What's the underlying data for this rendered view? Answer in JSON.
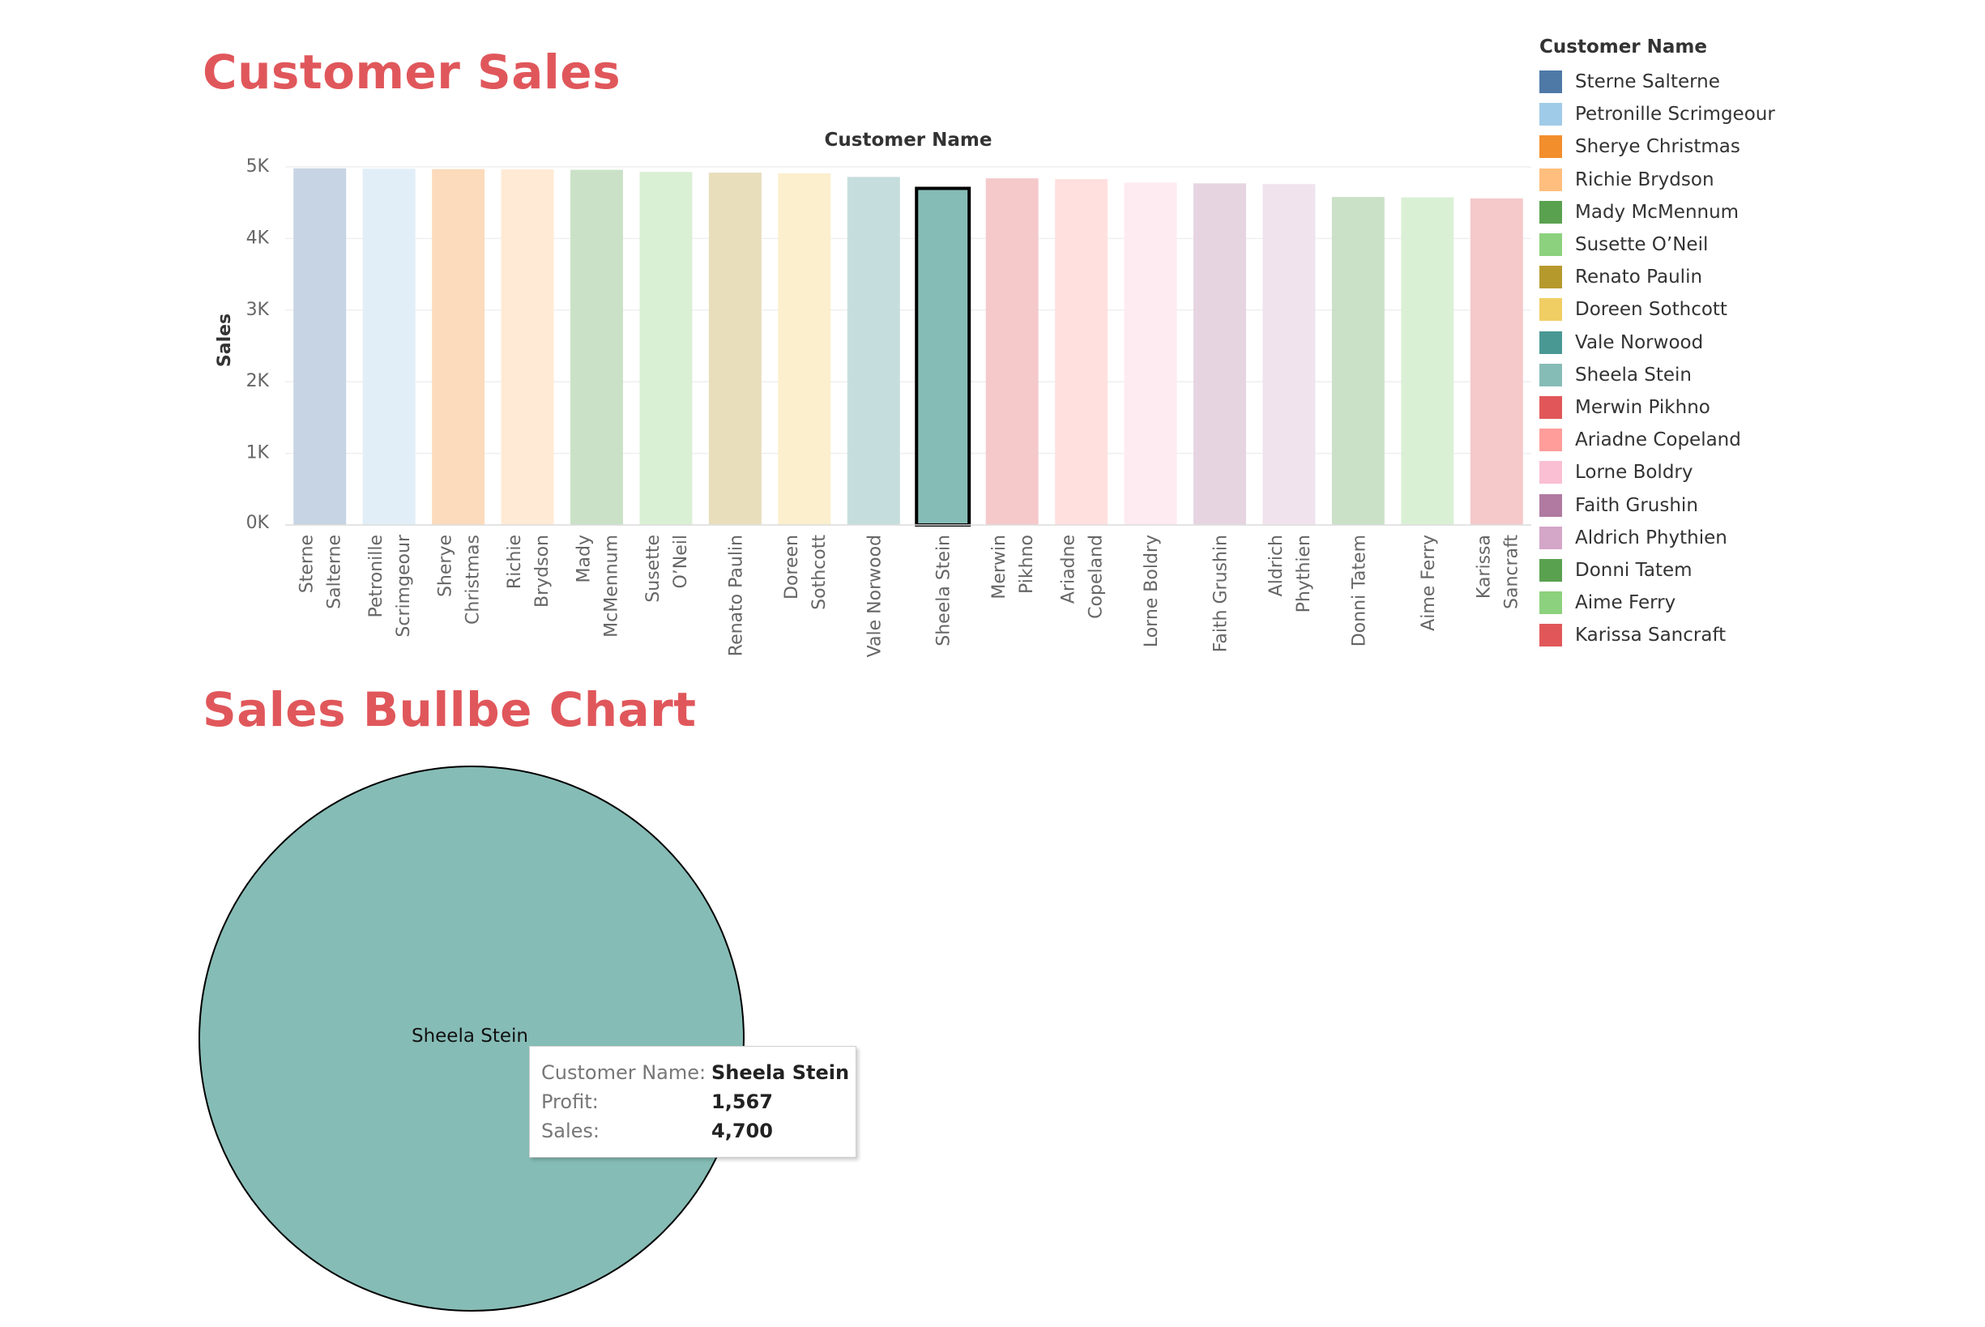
{
  "titles": {
    "customer_sales": "Customer Sales",
    "bulb_chart": "Sales Bullbe Chart"
  },
  "legend": {
    "title": "Customer Name",
    "items": [
      {
        "label": "Sterne Salterne",
        "color": "#4e79a7"
      },
      {
        "label": "Petronille Scrimgeour",
        "color": "#a0cbe8"
      },
      {
        "label": "Sherye Christmas",
        "color": "#f28e2b"
      },
      {
        "label": "Richie Brydson",
        "color": "#ffbe7d"
      },
      {
        "label": "Mady McMennum",
        "color": "#59a14f"
      },
      {
        "label": "Susette O’Neil",
        "color": "#8cd17d"
      },
      {
        "label": "Renato Paulin",
        "color": "#b6992d"
      },
      {
        "label": "Doreen Sothcott",
        "color": "#f1ce63"
      },
      {
        "label": "Vale Norwood",
        "color": "#499894"
      },
      {
        "label": "Sheela Stein",
        "color": "#86bcb6"
      },
      {
        "label": "Merwin Pikhno",
        "color": "#e15759"
      },
      {
        "label": "Ariadne Copeland",
        "color": "#ff9d9a"
      },
      {
        "label": "Lorne Boldry",
        "color": "#fabfd2"
      },
      {
        "label": "Faith Grushin",
        "color": "#b07aa1"
      },
      {
        "label": "Aldrich Phythien",
        "color": "#d4a6c8"
      },
      {
        "label": "Donni Tatem",
        "color": "#59a14f"
      },
      {
        "label": "Aime Ferry",
        "color": "#8cd17d"
      },
      {
        "label": "Karissa Sancraft",
        "color": "#e15759"
      }
    ]
  },
  "chart_data": [
    {
      "type": "bar",
      "title": "Customer Name",
      "xlabel": "Customer Name",
      "ylabel": "Sales",
      "yticks": [
        "0K",
        "1K",
        "2K",
        "3K",
        "4K",
        "5K"
      ],
      "ylim": [
        0,
        5000
      ],
      "grid": true,
      "highlighted": "Sheela Stein",
      "categories": [
        [
          "Sterne",
          "Salterne"
        ],
        [
          "Petronille",
          "Scrimgeour"
        ],
        [
          "Sherye",
          "Christmas"
        ],
        [
          "Richie",
          "Brydson"
        ],
        [
          "Mady",
          "McMennum"
        ],
        [
          "Susette",
          "O’Neil"
        ],
        [
          "Renato Paulin"
        ],
        [
          "Doreen",
          "Sothcott"
        ],
        [
          "Vale Norwood"
        ],
        [
          "Sheela Stein"
        ],
        [
          "Merwin",
          "Pikhno"
        ],
        [
          "Ariadne",
          "Copeland"
        ],
        [
          "Lorne Boldry"
        ],
        [
          "Faith Grushin"
        ],
        [
          "Aldrich",
          "Phythien"
        ],
        [
          "Donni Tatem"
        ],
        [
          "Aime Ferry"
        ],
        [
          "Karissa",
          "Sancraft"
        ]
      ],
      "values": [
        4980,
        4975,
        4970,
        4965,
        4960,
        4930,
        4920,
        4910,
        4860,
        4700,
        4840,
        4830,
        4780,
        4770,
        4760,
        4580,
        4575,
        4560
      ]
    },
    {
      "type": "bubble",
      "title": "Sales Bullbe Chart",
      "label": "Sheela Stein",
      "color": "#86bcb6",
      "sales": 4700,
      "profit": 1567
    }
  ],
  "tooltip": {
    "rows": [
      {
        "label": "Customer Name:",
        "value": "Sheela Stein"
      },
      {
        "label": "Profit:",
        "value": "1,567"
      },
      {
        "label": "Sales:",
        "value": "4,700"
      }
    ]
  }
}
